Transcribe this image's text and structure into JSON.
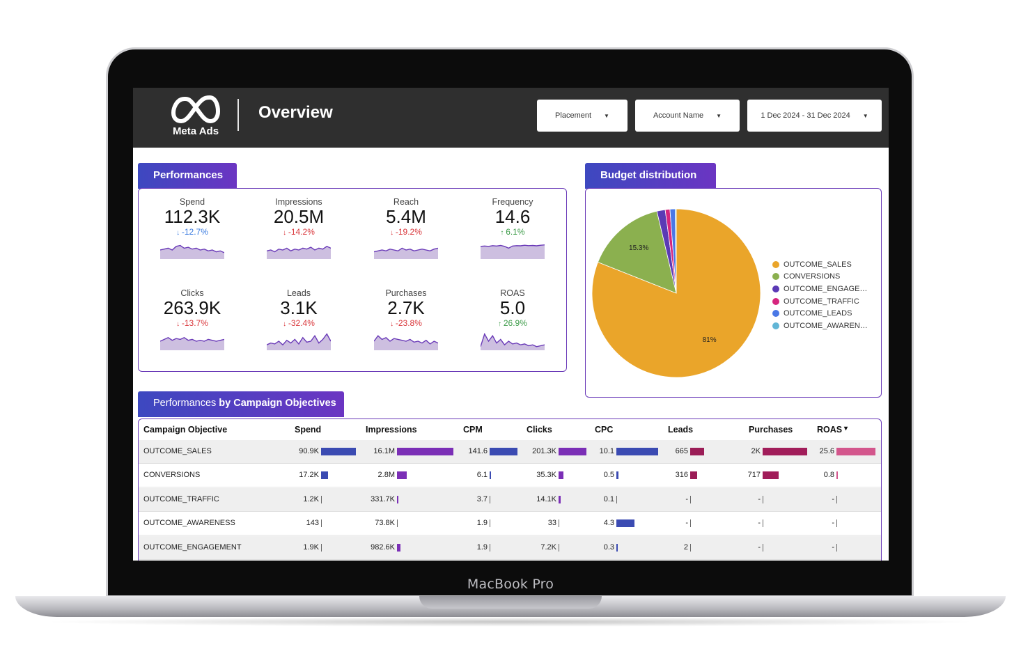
{
  "device": {
    "label": "MacBook Pro"
  },
  "header": {
    "logo_text": "Meta Ads",
    "logo_icon": "meta-infinity-icon",
    "title": "Overview",
    "filters": [
      {
        "label": "Placement"
      },
      {
        "label": "Account Name"
      },
      {
        "label": "1 Dec 2024 - 31 Dec 2024"
      }
    ]
  },
  "performances": {
    "tab": "Performances",
    "kpis": [
      {
        "label": "Spend",
        "value": "112.3K",
        "delta": "-12.7%",
        "arrow": "🠗",
        "trend": [
          0.5,
          0.55,
          0.6,
          0.5,
          0.7,
          0.75,
          0.6,
          0.65,
          0.55,
          0.6,
          0.5,
          0.55,
          0.45,
          0.5,
          0.4,
          0.45,
          0.35
        ]
      },
      {
        "label": "Impressions",
        "value": "20.5M",
        "delta": "-14.2%",
        "arrow": "🠗",
        "trend": [
          0.45,
          0.5,
          0.4,
          0.55,
          0.5,
          0.6,
          0.45,
          0.55,
          0.5,
          0.6,
          0.55,
          0.65,
          0.5,
          0.6,
          0.55,
          0.7,
          0.6
        ]
      },
      {
        "label": "Reach",
        "value": "5.4M",
        "delta": "-19.2%",
        "arrow": "🠗",
        "trend": [
          0.4,
          0.45,
          0.5,
          0.45,
          0.55,
          0.5,
          0.45,
          0.6,
          0.5,
          0.55,
          0.45,
          0.5,
          0.55,
          0.5,
          0.45,
          0.55,
          0.6
        ]
      },
      {
        "label": "Frequency",
        "value": "14.6",
        "delta": "6.1%",
        "arrow": "🠕",
        "trend": [
          0.7,
          0.72,
          0.7,
          0.74,
          0.72,
          0.75,
          0.7,
          0.6,
          0.72,
          0.74,
          0.73,
          0.76,
          0.74,
          0.75,
          0.73,
          0.76,
          0.78
        ]
      },
      {
        "label": "Clicks",
        "value": "263.9K",
        "delta": "-13.7%",
        "arrow": "🠗",
        "trend": [
          0.5,
          0.6,
          0.7,
          0.55,
          0.65,
          0.6,
          0.7,
          0.55,
          0.6,
          0.5,
          0.55,
          0.5,
          0.6,
          0.55,
          0.5,
          0.55,
          0.6
        ]
      },
      {
        "label": "Leads",
        "value": "3.1K",
        "delta": "-32.4%",
        "arrow": "🠗",
        "trend": [
          0.3,
          0.4,
          0.35,
          0.5,
          0.3,
          0.55,
          0.4,
          0.6,
          0.35,
          0.7,
          0.45,
          0.5,
          0.8,
          0.4,
          0.6,
          0.9,
          0.5
        ]
      },
      {
        "label": "Purchases",
        "value": "2.7K",
        "delta": "-23.8%",
        "arrow": "🠗",
        "trend": [
          0.5,
          0.8,
          0.6,
          0.7,
          0.5,
          0.65,
          0.6,
          0.55,
          0.5,
          0.6,
          0.45,
          0.5,
          0.4,
          0.55,
          0.35,
          0.5,
          0.4
        ]
      },
      {
        "label": "ROAS",
        "value": "5.0",
        "delta": "26.9%",
        "arrow": "🠕",
        "trend": [
          0.2,
          0.9,
          0.5,
          0.8,
          0.4,
          0.6,
          0.3,
          0.5,
          0.35,
          0.4,
          0.3,
          0.35,
          0.25,
          0.3,
          0.2,
          0.25,
          0.3
        ]
      }
    ]
  },
  "budget": {
    "tab": "Budget distribution",
    "chart_data": {
      "type": "pie",
      "categories": [
        "OUTCOME_SALES",
        "CONVERSIONS",
        "OUTCOME_ENGAGE…",
        "OUTCOME_TRAFFIC",
        "OUTCOME_LEADS",
        "OUTCOME_AWAREN…"
      ],
      "values": [
        81,
        15.3,
        1.6,
        0.9,
        1.0,
        0.2
      ],
      "data_labels": [
        "81%",
        "15.3%",
        "",
        "",
        "",
        ""
      ],
      "colors": [
        "#eaa52a",
        "#8bb04f",
        "#5b3ab5",
        "#d6257e",
        "#4a78e6",
        "#62b6d6"
      ],
      "legend_position": "right"
    }
  },
  "objectives": {
    "tab_light": "Performances ",
    "tab_bold": "by Campaign Objectives",
    "columns": [
      "Campaign Objective",
      "Spend",
      "Impressions",
      "CPM",
      "Clicks",
      "CPC",
      "Leads",
      "Purchases",
      "ROAS",
      "▾"
    ],
    "rows": [
      {
        "name": "OUTCOME_SALES",
        "spend": "90.9K",
        "impressions": "16.1M",
        "cpm": "141.6",
        "clicks": "201.3K",
        "cpc": "10.1",
        "leads": "665",
        "purchases": "2K",
        "roas": "25.6"
      },
      {
        "name": "CONVERSIONS",
        "spend": "17.2K",
        "impressions": "2.8M",
        "cpm": "6.1",
        "clicks": "35.3K",
        "cpc": "0.5",
        "leads": "316",
        "purchases": "717",
        "roas": "0.8"
      },
      {
        "name": "OUTCOME_TRAFFIC",
        "spend": "1.2K",
        "impressions": "331.7K",
        "cpm": "3.7",
        "clicks": "14.1K",
        "cpc": "0.1",
        "leads": "-",
        "purchases": "-",
        "roas": "-"
      },
      {
        "name": "OUTCOME_AWARENESS",
        "spend": "143",
        "impressions": "73.8K",
        "cpm": "1.9",
        "clicks": "33",
        "cpc": "4.3",
        "leads": "-",
        "purchases": "-",
        "roas": "-"
      },
      {
        "name": "OUTCOME_ENGAGEMENT",
        "spend": "1.9K",
        "impressions": "982.6K",
        "cpm": "1.9",
        "clicks": "7.2K",
        "cpc": "0.3",
        "leads": "2",
        "purchases": "-",
        "roas": "-"
      }
    ],
    "bar_fractions": {
      "spend": [
        1.0,
        0.19,
        0.013,
        0.0016,
        0.021
      ],
      "impressions": [
        1.0,
        0.17,
        0.02,
        0.005,
        0.061
      ],
      "cpm": [
        1.0,
        0.043,
        0.026,
        0.013,
        0.013
      ],
      "clicks": [
        1.0,
        0.175,
        0.07,
        0.0002,
        0.036
      ],
      "cpc": [
        1.0,
        0.05,
        0.01,
        0.43,
        0.03
      ],
      "leads": [
        1.0,
        0.475,
        0,
        0,
        0.003
      ],
      "purchases": [
        1.0,
        0.36,
        0,
        0,
        0
      ],
      "roas": [
        1.0,
        0.03,
        0,
        0,
        0
      ]
    },
    "bar_colors": {
      "spend": "#3b4bb2",
      "impressions": "#7b2fb6",
      "cpm": "#3b4bb2",
      "clicks": "#7b2fb6",
      "cpc": "#3b4bb2",
      "leads": "#9b1d57",
      "purchases": "#a11d5a",
      "roas": "#d3568c"
    }
  }
}
